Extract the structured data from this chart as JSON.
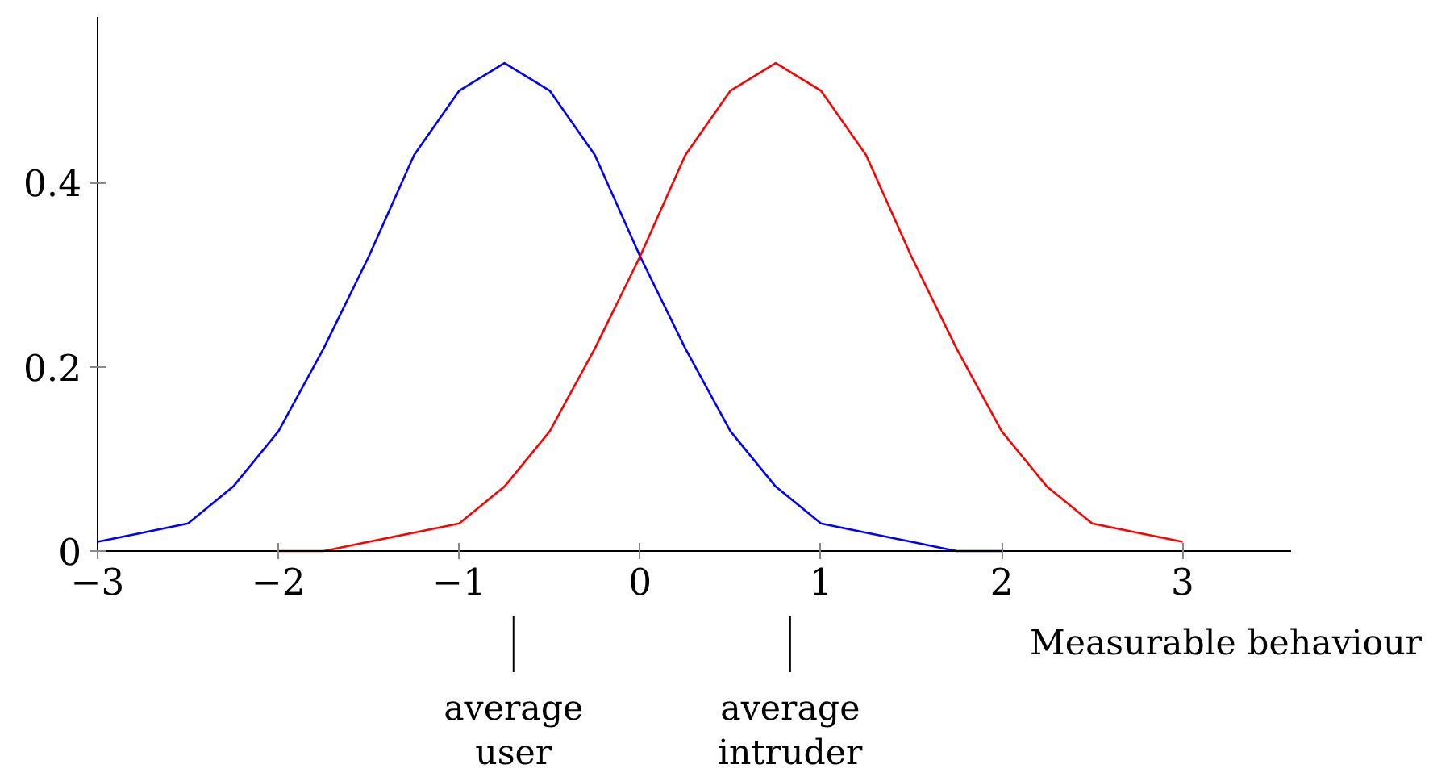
{
  "chart_data": {
    "type": "line",
    "xlabel": "Measurable behaviour",
    "xlim": [
      -3,
      3.6
    ],
    "ylim": [
      0,
      0.58
    ],
    "xticks": [
      {
        "value": -3,
        "label": "−3"
      },
      {
        "value": -2,
        "label": "−2"
      },
      {
        "value": -1,
        "label": "−1"
      },
      0,
      1,
      2,
      3
    ],
    "yticks": [
      0,
      0.2,
      0.4
    ],
    "grid": false,
    "marker": "none",
    "line_style": "solid",
    "series": [
      {
        "color": "#0000ff",
        "x": [
          -3,
          -2.75,
          -2.5,
          -2.25,
          -2,
          -1.75,
          -1.5,
          -1.25,
          -1,
          -0.75,
          -0.5,
          -0.25,
          0,
          0.25,
          0.5,
          0.75,
          1,
          1.25,
          1.5,
          1.75,
          2
        ],
        "values": [
          0.01,
          0.02,
          0.03,
          0.07,
          0.13,
          0.22,
          0.32,
          0.43,
          0.5,
          0.53,
          0.5,
          0.43,
          0.32,
          0.22,
          0.13,
          0.07,
          0.03,
          0.02,
          0.01,
          0,
          0
        ]
      },
      {
        "color": "#ff0000",
        "x": [
          -2,
          -1.75,
          -1.5,
          -1.25,
          -1,
          -0.75,
          -0.5,
          -0.25,
          0,
          0.25,
          0.5,
          0.75,
          1,
          1.25,
          1.5,
          1.75,
          2,
          2.25,
          2.5,
          2.75,
          3
        ],
        "values": [
          0,
          0,
          0.01,
          0.02,
          0.03,
          0.07,
          0.13,
          0.22,
          0.32,
          0.43,
          0.5,
          0.53,
          0.5,
          0.43,
          0.32,
          0.22,
          0.13,
          0.07,
          0.03,
          0.02,
          0.01
        ]
      }
    ],
    "ref_lines": [
      {
        "axis": "x",
        "value": -0.7,
        "label": "average user"
      },
      {
        "axis": "x",
        "value": 0.83,
        "label": "average intruder"
      }
    ]
  }
}
